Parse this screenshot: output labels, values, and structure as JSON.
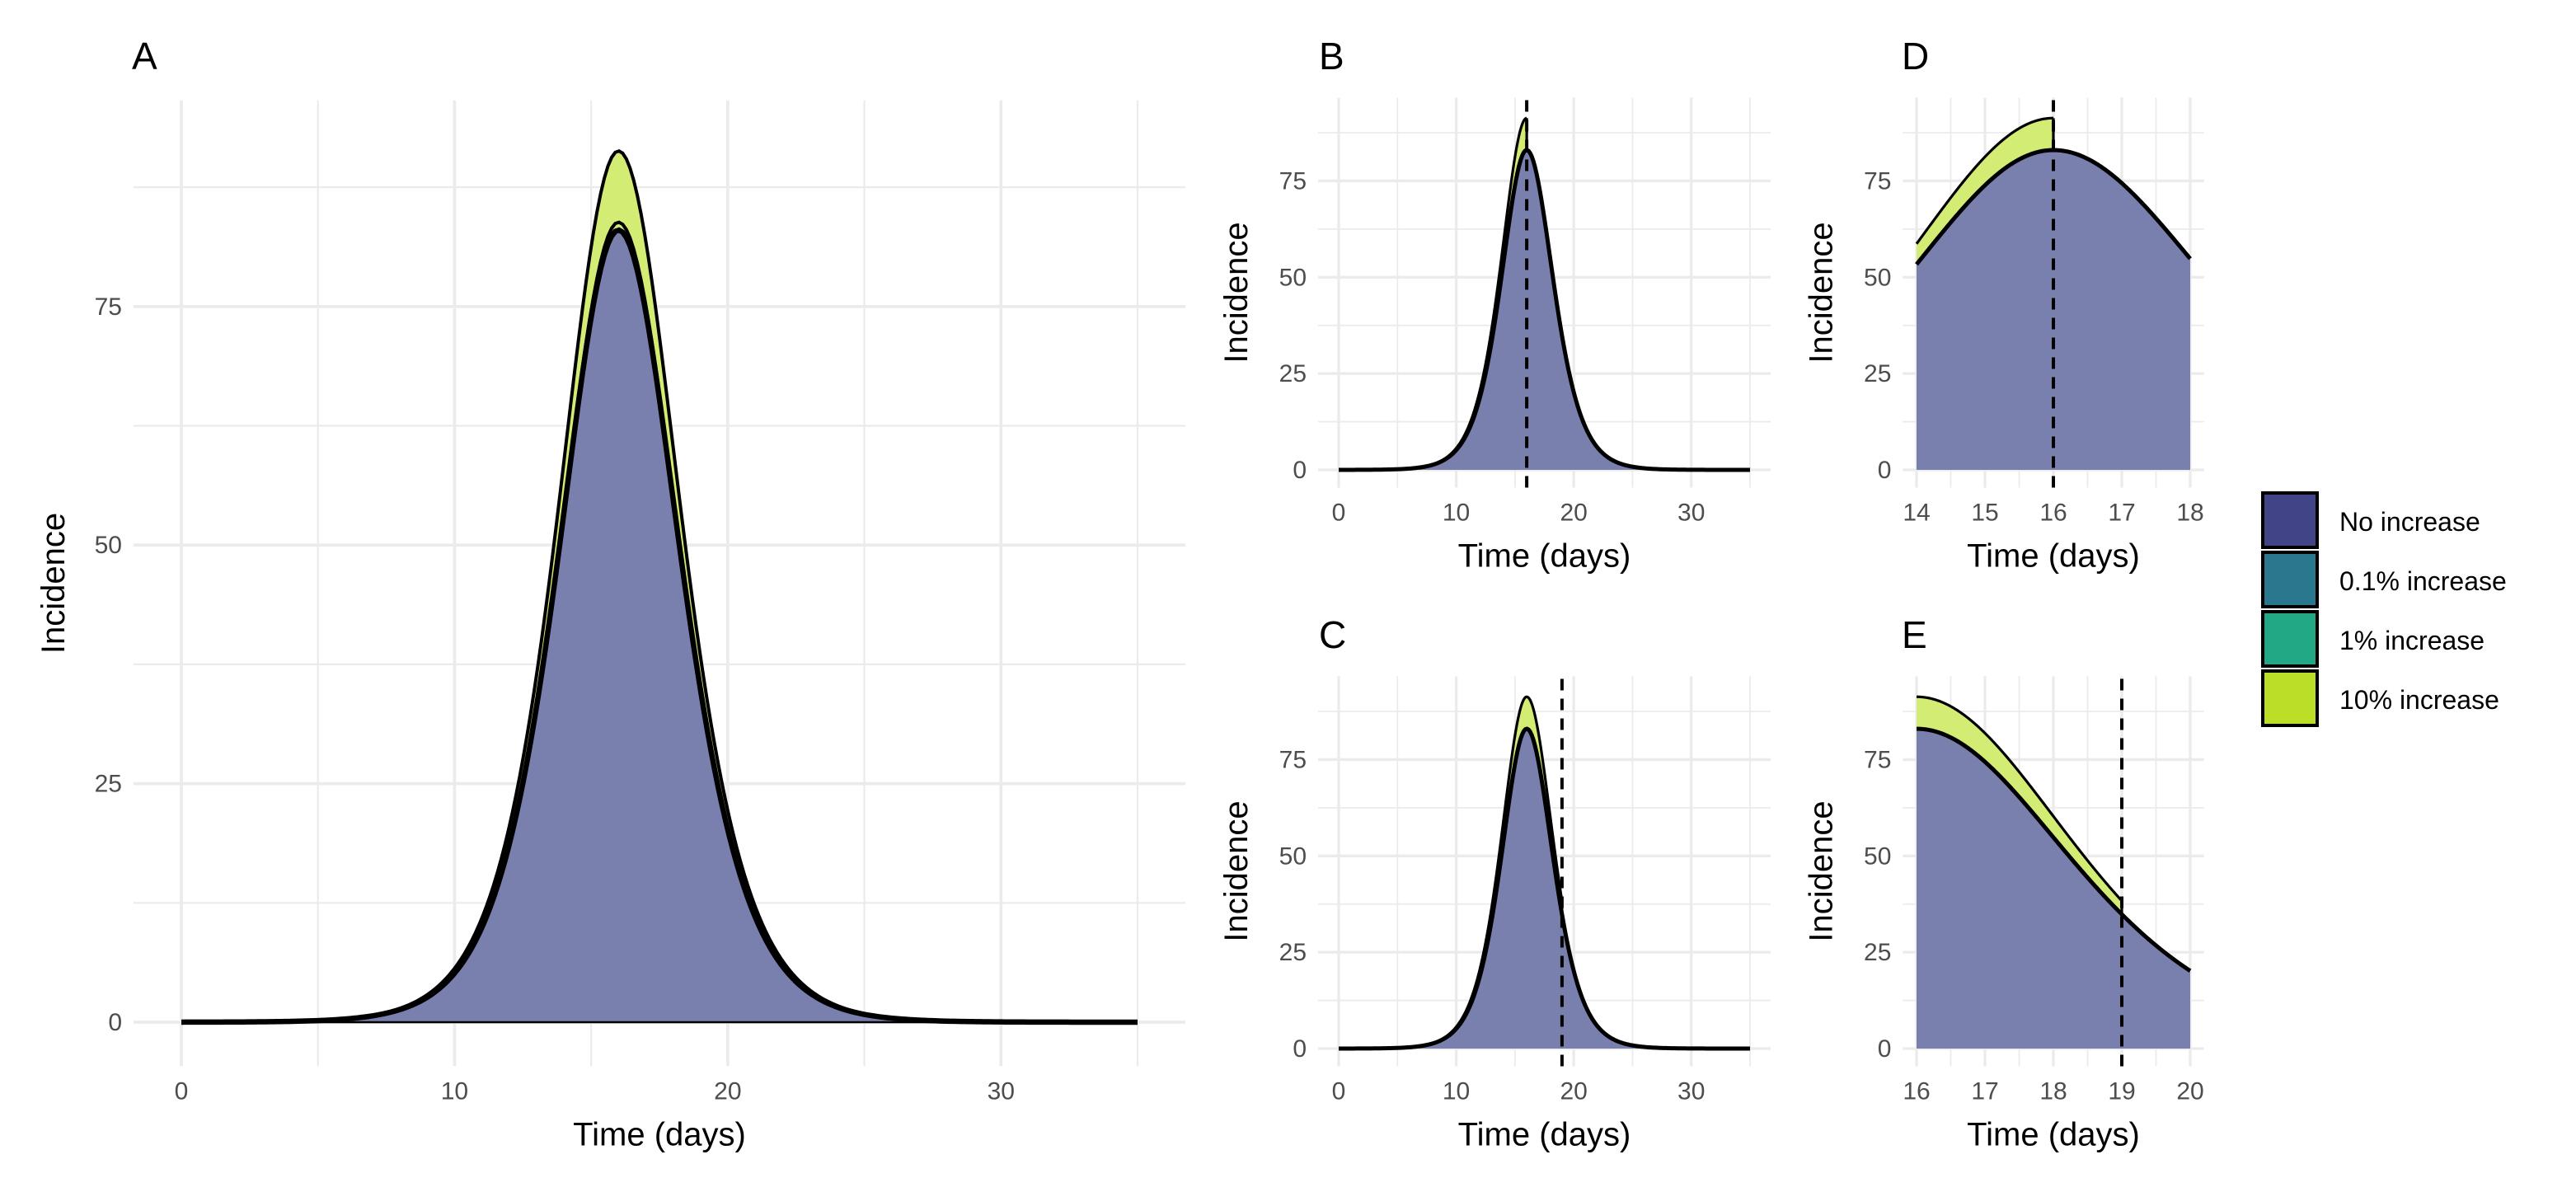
{
  "legend": {
    "items": [
      {
        "label": "No increase",
        "color": "#414487"
      },
      {
        "label": "0.1% increase",
        "color": "#2A788E"
      },
      {
        "label": "1% increase",
        "color": "#22A884"
      },
      {
        "label": "10% increase",
        "color": "#BBDF27"
      }
    ]
  },
  "chart_data": [
    {
      "panel": "A",
      "type": "area",
      "xlabel": "Time (days)",
      "ylabel": "Incidence",
      "xlim": [
        0,
        35
      ],
      "ylim": [
        0,
        92
      ],
      "xticks": [
        0,
        10,
        20,
        30
      ],
      "yticks": [
        0,
        25,
        50,
        75
      ],
      "curve": {
        "peak_day": 16,
        "peak": 83,
        "rise_width": 2.9,
        "fall_width": 3.0
      },
      "series": [
        {
          "name": "No increase",
          "multiplier": 1.0
        },
        {
          "name": "0.1% increase",
          "multiplier": 1.001
        },
        {
          "name": "1% increase",
          "multiplier": 1.01
        },
        {
          "name": "10% increase",
          "multiplier": 1.1
        }
      ],
      "grid": true
    },
    {
      "panel": "B",
      "type": "area",
      "xlabel": "Time (days)",
      "ylabel": "Incidence",
      "xlim": [
        0,
        35
      ],
      "ylim": [
        0,
        92
      ],
      "xticks": [
        0,
        10,
        20,
        30
      ],
      "yticks": [
        0,
        25,
        50,
        75
      ],
      "cutoff_day": 16,
      "grid": true
    },
    {
      "panel": "C",
      "type": "area",
      "xlabel": "Time (days)",
      "ylabel": "Incidence",
      "xlim": [
        0,
        35
      ],
      "ylim": [
        0,
        92
      ],
      "xticks": [
        0,
        10,
        20,
        30
      ],
      "yticks": [
        0,
        25,
        50,
        75
      ],
      "cutoff_day": 19,
      "grid": true
    },
    {
      "panel": "D",
      "type": "area",
      "xlabel": "Time (days)",
      "ylabel": "Incidence",
      "xlim": [
        14,
        18
      ],
      "ylim": [
        0,
        92
      ],
      "xticks": [
        14,
        15,
        16,
        17,
        18
      ],
      "yticks": [
        0,
        25,
        50,
        75
      ],
      "cutoff_day": 16,
      "grid": true
    },
    {
      "panel": "E",
      "type": "area",
      "xlabel": "Time (days)",
      "ylabel": "Incidence",
      "xlim": [
        16,
        20
      ],
      "ylim": [
        0,
        92
      ],
      "xticks": [
        16,
        17,
        18,
        19,
        20
      ],
      "yticks": [
        0,
        25,
        50,
        75
      ],
      "cutoff_day": 19,
      "grid": true
    }
  ]
}
